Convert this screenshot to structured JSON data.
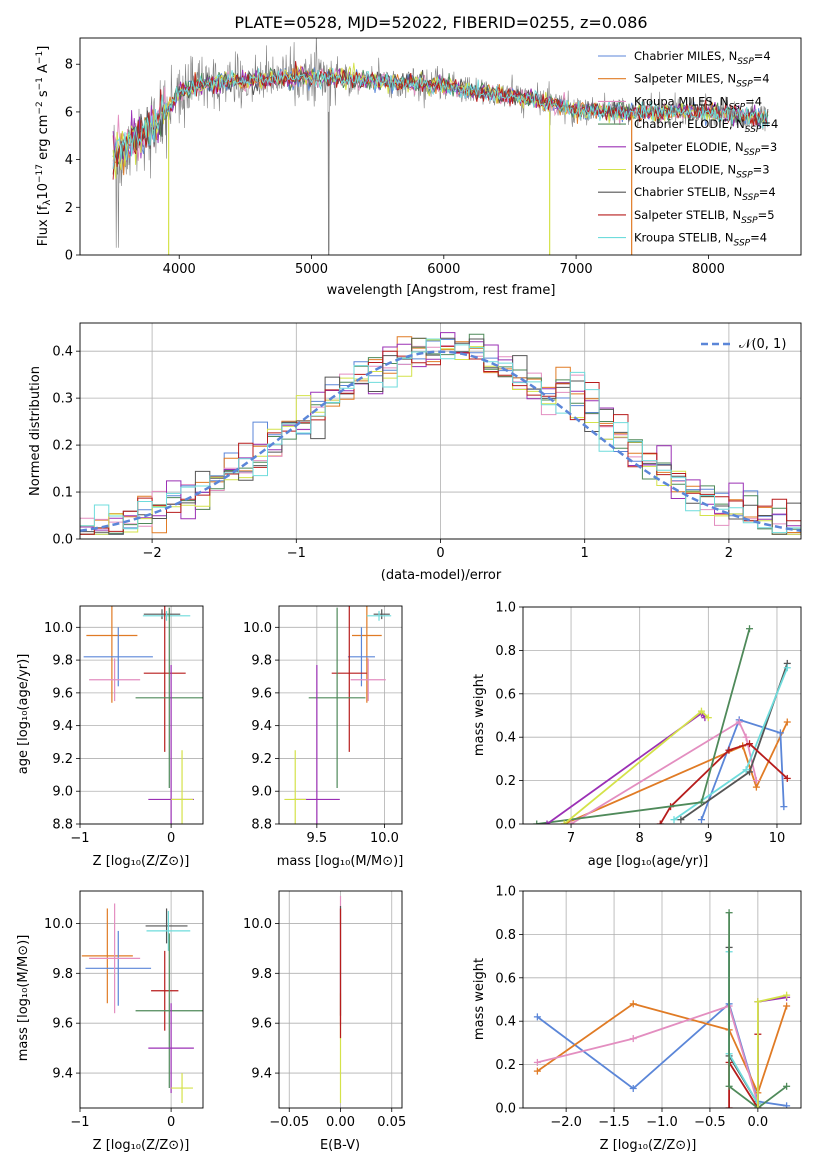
{
  "colors": {
    "chabrier_miles": "#5b86d8",
    "salpeter_miles": "#e07b25",
    "kroupa_miles": "#e38ec0",
    "chabrier_elodie": "#4f8a5a",
    "salpeter_elodie": "#9b30b5",
    "kroupa_elodie": "#d4e24a",
    "chabrier_stelib": "#555555",
    "salpeter_stelib": "#b71c1c",
    "kroupa_stelib": "#6fdcdc",
    "data": "#808080",
    "gaussian": "#5b86d8"
  },
  "chart_data": [
    {
      "id": "spectrum",
      "type": "line",
      "title": "PLATE=0528, MJD=52022, FIBERID=0255, z=0.086",
      "xlabel": "wavelength [Angstrom, rest frame]",
      "ylabel": "Flux [fλ10⁻¹⁷ erg cm⁻² s⁻¹ A⁻¹]",
      "xlim": [
        3250,
        8700
      ],
      "ylim": [
        0,
        9.1
      ],
      "xticks": [
        "4000",
        "5000",
        "6000",
        "7000",
        "8000"
      ],
      "yticks": [
        "0",
        "2",
        "4",
        "6",
        "8"
      ],
      "legend_position": "top-right",
      "legend": [
        {
          "name": "Chabrier MILES, N",
          "sub": "SSP",
          "suffix": "=4"
        },
        {
          "name": "Salpeter MILES, N",
          "sub": "SSP",
          "suffix": "=4"
        },
        {
          "name": "Kroupa MILES, N",
          "sub": "SSP",
          "suffix": "=4"
        },
        {
          "name": "Chabrier ELODIE, N",
          "sub": "SSP",
          "suffix": "=4"
        },
        {
          "name": "Salpeter ELODIE, N",
          "sub": "SSP",
          "suffix": "=3"
        },
        {
          "name": "Kroupa ELODIE, N",
          "sub": "SSP",
          "suffix": "=3"
        },
        {
          "name": "Chabrier STELIB, N",
          "sub": "SSP",
          "suffix": "=4"
        },
        {
          "name": "Salpeter STELIB, N",
          "sub": "SSP",
          "suffix": "=5"
        },
        {
          "name": "Kroupa STELIB, N",
          "sub": "SSP",
          "suffix": "=4"
        }
      ],
      "model_trend": [
        [
          3500,
          4.2
        ],
        [
          3650,
          4.8
        ],
        [
          3800,
          5.4
        ],
        [
          3900,
          6.0
        ],
        [
          4000,
          6.8
        ],
        [
          4200,
          7.2
        ],
        [
          4500,
          7.3
        ],
        [
          5000,
          7.5
        ],
        [
          5500,
          7.3
        ],
        [
          6000,
          7.1
        ],
        [
          6300,
          6.8
        ],
        [
          6600,
          6.6
        ],
        [
          7000,
          6.1
        ],
        [
          7400,
          6.0
        ],
        [
          8000,
          6.0
        ],
        [
          8450,
          5.7
        ]
      ]
    },
    {
      "id": "residuals",
      "type": "histogram",
      "xlabel": "(data-model)/error",
      "ylabel": "Normed distribution",
      "xlim": [
        -2.5,
        2.5
      ],
      "ylim": [
        0,
        0.46
      ],
      "xticks": [
        "−2",
        "−1",
        "0",
        "1",
        "2"
      ],
      "yticks": [
        "0.0",
        "0.1",
        "0.2",
        "0.3",
        "0.4"
      ],
      "legend": "𝒩(0, 1)",
      "legend_position": "top-right",
      "gaussian": {
        "mean": 0,
        "sigma": 1
      }
    },
    {
      "id": "age-vs-z",
      "type": "errorbar",
      "xlabel": "Z [log₁₀(Z/Z⊙)]",
      "ylabel": "age  [log₁₀(age/yr)]",
      "xlim": [
        -1.0,
        0.35
      ],
      "ylim": [
        8.8,
        10.13
      ],
      "xticks": [
        "−1",
        "0"
      ],
      "yticks": [
        "8.8",
        "9.0",
        "9.2",
        "9.4",
        "9.6",
        "9.8",
        "10.0"
      ],
      "points": [
        {
          "model": "salpeter_miles",
          "x": -0.65,
          "xerr": 0.28,
          "y": 9.95,
          "yerr": 0.41
        },
        {
          "model": "chabrier_miles",
          "x": -0.58,
          "xerr": 0.38,
          "y": 9.82,
          "yerr": 0.18
        },
        {
          "model": "kroupa_miles",
          "x": -0.62,
          "xerr": 0.28,
          "y": 9.68,
          "yerr": 0.13
        },
        {
          "model": "chabrier_stelib",
          "x": -0.1,
          "xerr": 0.2,
          "y": 10.08,
          "yerr": 0.03
        },
        {
          "model": "kroupa_stelib",
          "x": -0.05,
          "xerr": 0.26,
          "y": 10.07,
          "yerr": 0.03
        },
        {
          "model": "salpeter_stelib",
          "x": -0.07,
          "xerr": 0.23,
          "y": 9.72,
          "yerr": 0.48
        },
        {
          "model": "chabrier_elodie",
          "x": -0.02,
          "xerr": 0.37,
          "y": 9.57,
          "yerr": 0.55
        },
        {
          "model": "salpeter_elodie",
          "x": 0.0,
          "xerr": 0.25,
          "y": 8.95,
          "yerr": 0.82
        },
        {
          "model": "kroupa_elodie",
          "x": 0.12,
          "xerr": 0.12,
          "y": 8.95,
          "yerr": 0.3
        }
      ]
    },
    {
      "id": "age-vs-mass",
      "type": "errorbar",
      "xlabel": "mass [log₁₀(M/M⊙)]",
      "ylabel": "",
      "xlim": [
        9.22,
        10.13
      ],
      "ylim": [
        8.8,
        10.13
      ],
      "xticks": [
        "9.5",
        "10.0"
      ],
      "yticks": [
        "8.8",
        "9.0",
        "9.2",
        "9.4",
        "9.6",
        "9.8",
        "10.0"
      ],
      "points": [
        {
          "model": "salpeter_miles",
          "x": 9.87,
          "xerr": 0.11,
          "y": 9.95,
          "yerr": 0.41
        },
        {
          "model": "chabrier_miles",
          "x": 9.83,
          "xerr": 0.1,
          "y": 9.82,
          "yerr": 0.18
        },
        {
          "model": "kroupa_miles",
          "x": 9.88,
          "xerr": 0.13,
          "y": 9.68,
          "yerr": 0.13
        },
        {
          "model": "chabrier_stelib",
          "x": 9.98,
          "xerr": 0.06,
          "y": 10.08,
          "yerr": 0.03
        },
        {
          "model": "kroupa_stelib",
          "x": 9.96,
          "xerr": 0.09,
          "y": 10.07,
          "yerr": 0.03
        },
        {
          "model": "salpeter_stelib",
          "x": 9.74,
          "xerr": 0.13,
          "y": 9.72,
          "yerr": 0.48
        },
        {
          "model": "chabrier_elodie",
          "x": 9.65,
          "xerr": 0.21,
          "y": 9.57,
          "yerr": 0.55
        },
        {
          "model": "salpeter_elodie",
          "x": 9.5,
          "xerr": 0.17,
          "y": 8.95,
          "yerr": 0.82
        },
        {
          "model": "kroupa_elodie",
          "x": 9.34,
          "xerr": 0.08,
          "y": 8.95,
          "yerr": 0.3
        }
      ]
    },
    {
      "id": "weight-vs-age",
      "type": "line",
      "xlabel": "age  [log₁₀(age/yr)]",
      "ylabel": "mass weight",
      "xlim": [
        6.3,
        10.35
      ],
      "ylim": [
        0,
        1.0
      ],
      "xticks": [
        "7",
        "8",
        "9",
        "10"
      ],
      "yticks": [
        "0.0",
        "0.2",
        "0.4",
        "0.6",
        "0.8",
        "1.0"
      ],
      "series": [
        {
          "model": "salpeter_miles",
          "points": [
            [
              6.9,
              0.0
            ],
            [
              9.5,
              0.36
            ],
            [
              9.7,
              0.17
            ],
            [
              10.15,
              0.47
            ]
          ]
        },
        {
          "model": "chabrier_miles",
          "points": [
            [
              8.9,
              0.02
            ],
            [
              9.45,
              0.48
            ],
            [
              10.05,
              0.42
            ],
            [
              10.1,
              0.08
            ]
          ]
        },
        {
          "model": "kroupa_miles",
          "points": [
            [
              7.0,
              0.0
            ],
            [
              9.45,
              0.47
            ],
            [
              9.55,
              0.4
            ],
            [
              9.7,
              0.2
            ]
          ]
        },
        {
          "model": "chabrier_stelib",
          "points": [
            [
              8.6,
              0.02
            ],
            [
              9.6,
              0.24
            ],
            [
              10.15,
              0.74
            ]
          ]
        },
        {
          "model": "kroupa_stelib",
          "points": [
            [
              8.5,
              0.02
            ],
            [
              9.55,
              0.25
            ],
            [
              10.15,
              0.72
            ]
          ]
        },
        {
          "model": "salpeter_stelib",
          "points": [
            [
              8.3,
              0.0
            ],
            [
              8.45,
              0.08
            ],
            [
              9.3,
              0.34
            ],
            [
              9.6,
              0.37
            ],
            [
              10.15,
              0.21
            ]
          ]
        },
        {
          "model": "chabrier_elodie",
          "points": [
            [
              6.5,
              0.0
            ],
            [
              8.9,
              0.1
            ],
            [
              9.6,
              0.9
            ]
          ]
        },
        {
          "model": "salpeter_elodie",
          "points": [
            [
              6.65,
              0.0
            ],
            [
              8.9,
              0.51
            ],
            [
              8.95,
              0.49
            ]
          ]
        },
        {
          "model": "kroupa_elodie",
          "points": [
            [
              6.9,
              0.0
            ],
            [
              8.9,
              0.52
            ],
            [
              9.0,
              0.49
            ]
          ]
        }
      ]
    },
    {
      "id": "mass-vs-z",
      "type": "errorbar",
      "xlabel": "Z [log₁₀(Z/Z⊙)]",
      "ylabel": "mass [log₁₀(M/M⊙)]",
      "xlim": [
        -1.0,
        0.35
      ],
      "ylim": [
        9.26,
        10.13
      ],
      "xticks": [
        "−1",
        "0"
      ],
      "yticks": [
        "9.4",
        "9.6",
        "9.8",
        "10.0"
      ],
      "points": [
        {
          "model": "salpeter_miles",
          "x": -0.7,
          "xerr": 0.28,
          "y": 9.87,
          "yerr": 0.19
        },
        {
          "model": "chabrier_miles",
          "x": -0.58,
          "xerr": 0.36,
          "y": 9.82,
          "yerr": 0.15
        },
        {
          "model": "kroupa_miles",
          "x": -0.62,
          "xerr": 0.28,
          "y": 9.86,
          "yerr": 0.22
        },
        {
          "model": "chabrier_stelib",
          "x": -0.05,
          "xerr": 0.23,
          "y": 9.99,
          "yerr": 0.07
        },
        {
          "model": "kroupa_stelib",
          "x": -0.03,
          "xerr": 0.24,
          "y": 9.97,
          "yerr": 0.08
        },
        {
          "model": "salpeter_stelib",
          "x": -0.07,
          "xerr": 0.15,
          "y": 9.73,
          "yerr": 0.16
        },
        {
          "model": "chabrier_elodie",
          "x": -0.02,
          "xerr": 0.37,
          "y": 9.65,
          "yerr": 0.31
        },
        {
          "model": "salpeter_elodie",
          "x": 0.0,
          "xerr": 0.25,
          "y": 9.5,
          "yerr": 0.18
        },
        {
          "model": "kroupa_elodie",
          "x": 0.12,
          "xerr": 0.12,
          "y": 9.34,
          "yerr": 0.06
        }
      ]
    },
    {
      "id": "mass-vs-ebv",
      "type": "errorbar",
      "xlabel": "E(B-V)",
      "ylabel": "",
      "xlim": [
        -0.06,
        0.06
      ],
      "ylim": [
        9.26,
        10.13
      ],
      "xticks": [
        "−0.05",
        "0.00",
        "0.05"
      ],
      "yticks": [
        "9.4",
        "9.6",
        "9.8",
        "10.0"
      ],
      "points": [
        {
          "model": "kroupa_elodie",
          "x": 0.0,
          "xerr": 0.0,
          "y": 9.5,
          "yerr": 0.22
        },
        {
          "model": "kroupa_miles",
          "x": 0.0,
          "xerr": 0.0,
          "y": 9.85,
          "yerr": 0.26
        },
        {
          "model": "chabrier_stelib",
          "x": 0.0,
          "xerr": 0.0,
          "y": 9.85,
          "yerr": 0.22
        },
        {
          "model": "salpeter_stelib",
          "x": 0.0,
          "xerr": 0.0,
          "y": 9.8,
          "yerr": 0.26
        }
      ]
    },
    {
      "id": "weight-vs-z",
      "type": "line",
      "xlabel": "Z [log₁₀(Z/Z⊙)]",
      "ylabel": "mass weight",
      "xlim": [
        -2.45,
        0.45
      ],
      "ylim": [
        0,
        1.0
      ],
      "xticks": [
        "−2.0",
        "−1.5",
        "−1.0",
        "−0.5",
        "0.0"
      ],
      "yticks": [
        "0.0",
        "0.2",
        "0.4",
        "0.6",
        "0.8",
        "1.0"
      ],
      "series": [
        {
          "model": "chabrier_miles",
          "points": [
            [
              -2.3,
              0.42
            ],
            [
              -1.3,
              0.09
            ],
            [
              -0.3,
              0.48
            ],
            [
              0.0,
              0.03
            ],
            [
              0.3,
              0.01
            ]
          ]
        },
        {
          "model": "salpeter_miles",
          "points": [
            [
              -2.3,
              0.17
            ],
            [
              -1.3,
              0.48
            ],
            [
              -0.3,
              0.36
            ],
            [
              0.0,
              0.07
            ],
            [
              0.3,
              0.47
            ]
          ]
        },
        {
          "model": "kroupa_miles",
          "points": [
            [
              -2.3,
              0.21
            ],
            [
              -1.3,
              0.32
            ],
            [
              -0.3,
              0.47
            ],
            [
              0.0,
              0.02
            ]
          ]
        },
        {
          "model": "chabrier_stelib",
          "points": [
            [
              -0.3,
              0.74
            ],
            [
              -0.3,
              0.24
            ],
            [
              0.0,
              0.02
            ]
          ]
        },
        {
          "model": "kroupa_stelib",
          "points": [
            [
              -0.3,
              0.72
            ],
            [
              -0.3,
              0.25
            ],
            [
              0.0,
              0.02
            ]
          ]
        },
        {
          "model": "salpeter_stelib",
          "points": [
            [
              -0.3,
              0.0
            ],
            [
              -0.3,
              0.21
            ],
            [
              0.0,
              0.0
            ],
            [
              0.0,
              0.34
            ]
          ]
        },
        {
          "model": "chabrier_elodie",
          "points": [
            [
              -0.3,
              0.9
            ],
            [
              -0.3,
              0.1
            ],
            [
              0.0,
              0.0
            ],
            [
              0.3,
              0.1
            ]
          ]
        },
        {
          "model": "salpeter_elodie",
          "points": [
            [
              0.0,
              0.0
            ],
            [
              0.0,
              0.49
            ],
            [
              0.3,
              0.51
            ]
          ]
        },
        {
          "model": "kroupa_elodie",
          "points": [
            [
              0.0,
              0.0
            ],
            [
              0.0,
              0.49
            ],
            [
              0.3,
              0.52
            ]
          ]
        }
      ]
    }
  ]
}
